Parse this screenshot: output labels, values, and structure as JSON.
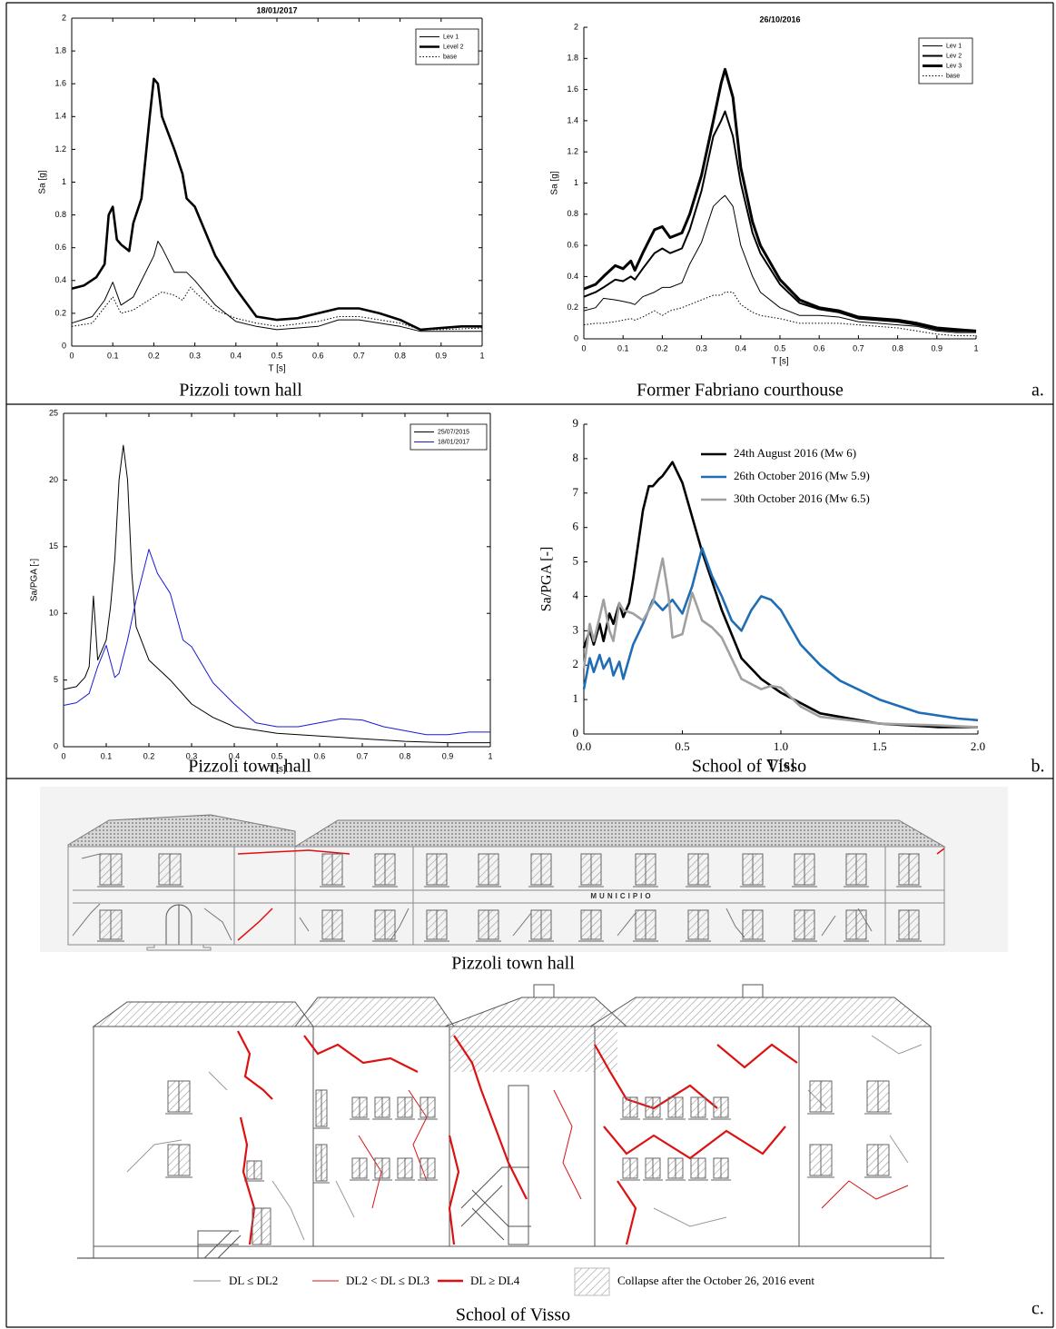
{
  "chart_data": [
    {
      "type": "line",
      "title": "18/01/2017",
      "x_label": "T [s]",
      "y_label": "Sa [g]",
      "xlim": [
        0,
        1
      ],
      "ylim": [
        0,
        2
      ],
      "xticks": [
        0,
        0.1,
        0.2,
        0.3,
        0.4,
        0.5,
        0.6,
        0.7,
        0.8,
        0.9,
        1
      ],
      "yticks": [
        0,
        0.2,
        0.4,
        0.6,
        0.8,
        1,
        1.2,
        1.4,
        1.6,
        1.8,
        2
      ],
      "box": true,
      "legend": "upper right",
      "legend_frame": true,
      "series": [
        {
          "name": "Lev 1",
          "color": "#000000",
          "width": 1,
          "dash": "none",
          "x": [
            0,
            0.05,
            0.08,
            0.1,
            0.12,
            0.15,
            0.2,
            0.21,
            0.22,
            0.25,
            0.28,
            0.3,
            0.35,
            0.4,
            0.45,
            0.5,
            0.6,
            0.65,
            0.7,
            0.8,
            0.85,
            0.9,
            1.0
          ],
          "values": [
            0.14,
            0.18,
            0.28,
            0.39,
            0.25,
            0.3,
            0.55,
            0.64,
            0.6,
            0.45,
            0.45,
            0.4,
            0.25,
            0.15,
            0.12,
            0.1,
            0.12,
            0.16,
            0.16,
            0.12,
            0.09,
            0.09,
            0.09
          ]
        },
        {
          "name": "Level 2",
          "color": "#000000",
          "width": 2.6,
          "dash": "none",
          "x": [
            0,
            0.03,
            0.06,
            0.08,
            0.09,
            0.1,
            0.11,
            0.12,
            0.14,
            0.15,
            0.17,
            0.19,
            0.2,
            0.21,
            0.22,
            0.25,
            0.27,
            0.28,
            0.3,
            0.35,
            0.4,
            0.45,
            0.5,
            0.55,
            0.6,
            0.65,
            0.7,
            0.75,
            0.8,
            0.85,
            0.9,
            0.95,
            1.0
          ],
          "values": [
            0.35,
            0.37,
            0.42,
            0.5,
            0.8,
            0.85,
            0.65,
            0.62,
            0.58,
            0.75,
            0.9,
            1.4,
            1.63,
            1.6,
            1.4,
            1.2,
            1.05,
            0.9,
            0.85,
            0.55,
            0.35,
            0.18,
            0.16,
            0.17,
            0.2,
            0.23,
            0.23,
            0.2,
            0.16,
            0.1,
            0.11,
            0.12,
            0.12
          ]
        },
        {
          "name": "base",
          "color": "#000000",
          "width": 1,
          "dash": "1.5 2",
          "x": [
            0,
            0.05,
            0.1,
            0.12,
            0.15,
            0.2,
            0.22,
            0.25,
            0.27,
            0.29,
            0.3,
            0.35,
            0.4,
            0.45,
            0.5,
            0.6,
            0.65,
            0.7,
            0.8,
            0.85,
            0.9,
            1.0
          ],
          "values": [
            0.12,
            0.14,
            0.3,
            0.2,
            0.22,
            0.3,
            0.33,
            0.31,
            0.28,
            0.36,
            0.33,
            0.22,
            0.17,
            0.14,
            0.12,
            0.15,
            0.18,
            0.18,
            0.14,
            0.1,
            0.1,
            0.11
          ]
        }
      ]
    },
    {
      "type": "line",
      "title": "26/10/2016",
      "x_label": "T [s]",
      "y_label": "Sa [g]",
      "xlim": [
        0,
        1
      ],
      "ylim": [
        0,
        2
      ],
      "xticks": [
        0,
        0.1,
        0.2,
        0.3,
        0.4,
        0.5,
        0.6,
        0.7,
        0.8,
        0.9,
        1
      ],
      "yticks": [
        0,
        0.2,
        0.4,
        0.6,
        0.8,
        1,
        1.2,
        1.4,
        1.6,
        1.8,
        2
      ],
      "box": false,
      "legend": "upper right",
      "legend_frame": true,
      "series": [
        {
          "name": "Lev 1",
          "color": "#000000",
          "width": 1,
          "dash": "none",
          "x": [
            0,
            0.03,
            0.05,
            0.08,
            0.1,
            0.12,
            0.13,
            0.15,
            0.18,
            0.2,
            0.22,
            0.25,
            0.27,
            0.3,
            0.33,
            0.35,
            0.36,
            0.38,
            0.4,
            0.43,
            0.45,
            0.5,
            0.55,
            0.6,
            0.65,
            0.7,
            0.75,
            0.8,
            0.85,
            0.9,
            0.95,
            1.0
          ],
          "values": [
            0.18,
            0.2,
            0.26,
            0.25,
            0.24,
            0.23,
            0.22,
            0.27,
            0.3,
            0.33,
            0.33,
            0.36,
            0.48,
            0.62,
            0.85,
            0.9,
            0.92,
            0.85,
            0.6,
            0.4,
            0.3,
            0.2,
            0.15,
            0.15,
            0.14,
            0.11,
            0.1,
            0.09,
            0.08,
            0.05,
            0.04,
            0.04
          ]
        },
        {
          "name": "Lev 2",
          "color": "#000000",
          "width": 2,
          "dash": "none",
          "x": [
            0,
            0.03,
            0.05,
            0.08,
            0.1,
            0.12,
            0.13,
            0.15,
            0.18,
            0.2,
            0.22,
            0.25,
            0.27,
            0.3,
            0.33,
            0.35,
            0.36,
            0.38,
            0.4,
            0.43,
            0.45,
            0.5,
            0.55,
            0.6,
            0.65,
            0.7,
            0.75,
            0.8,
            0.85,
            0.9,
            0.95,
            1.0
          ],
          "values": [
            0.27,
            0.3,
            0.33,
            0.38,
            0.37,
            0.4,
            0.38,
            0.45,
            0.55,
            0.58,
            0.55,
            0.58,
            0.7,
            0.95,
            1.3,
            1.4,
            1.46,
            1.3,
            1.0,
            0.68,
            0.55,
            0.35,
            0.23,
            0.19,
            0.17,
            0.13,
            0.12,
            0.11,
            0.09,
            0.06,
            0.05,
            0.05
          ]
        },
        {
          "name": "Lev 3",
          "color": "#000000",
          "width": 3,
          "dash": "none",
          "x": [
            0,
            0.03,
            0.05,
            0.08,
            0.1,
            0.12,
            0.13,
            0.15,
            0.18,
            0.2,
            0.22,
            0.25,
            0.27,
            0.3,
            0.33,
            0.35,
            0.36,
            0.38,
            0.4,
            0.43,
            0.45,
            0.5,
            0.55,
            0.6,
            0.65,
            0.7,
            0.75,
            0.8,
            0.85,
            0.9,
            0.95,
            1.0
          ],
          "values": [
            0.32,
            0.35,
            0.4,
            0.47,
            0.45,
            0.5,
            0.44,
            0.55,
            0.7,
            0.72,
            0.65,
            0.68,
            0.8,
            1.05,
            1.4,
            1.64,
            1.73,
            1.55,
            1.1,
            0.75,
            0.6,
            0.38,
            0.25,
            0.2,
            0.18,
            0.14,
            0.13,
            0.12,
            0.1,
            0.07,
            0.06,
            0.05
          ]
        },
        {
          "name": "base",
          "color": "#000000",
          "width": 1,
          "dash": "1.5 2",
          "x": [
            0,
            0.03,
            0.05,
            0.08,
            0.1,
            0.12,
            0.13,
            0.15,
            0.18,
            0.2,
            0.22,
            0.25,
            0.27,
            0.3,
            0.33,
            0.35,
            0.36,
            0.38,
            0.4,
            0.43,
            0.45,
            0.5,
            0.55,
            0.6,
            0.65,
            0.7,
            0.75,
            0.8,
            0.85,
            0.9,
            0.95,
            1.0
          ],
          "values": [
            0.09,
            0.1,
            0.1,
            0.11,
            0.12,
            0.13,
            0.12,
            0.14,
            0.18,
            0.15,
            0.18,
            0.2,
            0.22,
            0.25,
            0.28,
            0.28,
            0.3,
            0.3,
            0.22,
            0.17,
            0.15,
            0.13,
            0.1,
            0.1,
            0.1,
            0.09,
            0.08,
            0.07,
            0.05,
            0.03,
            0.02,
            0.02
          ]
        }
      ]
    },
    {
      "type": "line",
      "x_label": "T [s]",
      "y_label": "Sa/PGA [-]",
      "xlim": [
        0,
        1
      ],
      "ylim": [
        0,
        25
      ],
      "xticks": [
        0,
        0.1,
        0.2,
        0.3,
        0.4,
        0.5,
        0.6,
        0.7,
        0.8,
        0.9,
        1
      ],
      "yticks": [
        0,
        5,
        10,
        15,
        20,
        25
      ],
      "box": true,
      "legend": "upper right",
      "legend_frame": true,
      "series": [
        {
          "name": "25/07/2015",
          "color": "#000000",
          "width": 1,
          "dash": "none",
          "x": [
            0,
            0.03,
            0.05,
            0.06,
            0.07,
            0.08,
            0.1,
            0.11,
            0.12,
            0.13,
            0.14,
            0.15,
            0.16,
            0.17,
            0.2,
            0.25,
            0.3,
            0.35,
            0.4,
            0.5,
            0.6,
            0.7,
            0.8,
            0.9,
            1.0
          ],
          "values": [
            4.3,
            4.5,
            5.2,
            6,
            11.3,
            6.5,
            8,
            10.5,
            14,
            20,
            22.6,
            20,
            13,
            9,
            6.5,
            5,
            3.2,
            2.2,
            1.5,
            1.0,
            0.8,
            0.6,
            0.4,
            0.3,
            0.3
          ]
        },
        {
          "name": "18/01/2017",
          "color": "#1a1ad6",
          "width": 1,
          "dash": "none",
          "x": [
            0,
            0.03,
            0.06,
            0.08,
            0.1,
            0.12,
            0.13,
            0.15,
            0.17,
            0.2,
            0.22,
            0.25,
            0.28,
            0.3,
            0.35,
            0.4,
            0.45,
            0.5,
            0.55,
            0.6,
            0.65,
            0.7,
            0.75,
            0.8,
            0.85,
            0.9,
            0.95,
            1.0
          ],
          "values": [
            3.1,
            3.3,
            4,
            6,
            7.6,
            5.2,
            5.5,
            8,
            11,
            14.8,
            13,
            11.5,
            8,
            7.5,
            4.8,
            3.2,
            1.8,
            1.5,
            1.5,
            1.8,
            2.1,
            2.0,
            1.5,
            1.2,
            0.9,
            0.9,
            1.1,
            1.1
          ]
        }
      ]
    },
    {
      "type": "line",
      "x_label": "T [s]",
      "y_label": "Sa/PGA [-]",
      "xlim": [
        0,
        2
      ],
      "ylim": [
        0,
        9
      ],
      "xticks": [
        {
          "value": 0,
          "label": "0.0"
        },
        0.5,
        {
          "value": 1,
          "label": "1.0"
        },
        1.5,
        {
          "value": 2,
          "label": "2.0"
        }
      ],
      "yticks": [
        0,
        1,
        2,
        3,
        4,
        5,
        6,
        7,
        8,
        9
      ],
      "box": false,
      "legend": "upper right",
      "legend_frame": false,
      "series": [
        {
          "name": "24th August 2016 (Mw 6)",
          "color": "#000000",
          "width": 2.6,
          "dash": "none",
          "x": [
            0,
            0.03,
            0.05,
            0.08,
            0.1,
            0.13,
            0.15,
            0.18,
            0.2,
            0.23,
            0.25,
            0.3,
            0.33,
            0.35,
            0.38,
            0.4,
            0.45,
            0.5,
            0.6,
            0.7,
            0.8,
            0.9,
            1.0,
            1.2,
            1.5,
            1.8,
            2.0
          ],
          "values": [
            2.5,
            3,
            2.6,
            3.2,
            2.7,
            3.5,
            3.2,
            3.8,
            3.4,
            3.8,
            4.5,
            6.5,
            7.2,
            7.2,
            7.4,
            7.5,
            7.9,
            7.3,
            5.3,
            3.6,
            2.2,
            1.6,
            1.2,
            0.6,
            0.3,
            0.2,
            0.2
          ]
        },
        {
          "name": "26th October 2016 (Mw 5.9)",
          "color": "#1f6db5",
          "width": 2.6,
          "dash": "none",
          "x": [
            0,
            0.03,
            0.05,
            0.08,
            0.1,
            0.13,
            0.15,
            0.18,
            0.2,
            0.25,
            0.3,
            0.35,
            0.4,
            0.45,
            0.5,
            0.55,
            0.6,
            0.65,
            0.7,
            0.75,
            0.8,
            0.85,
            0.9,
            0.95,
            1.0,
            1.1,
            1.2,
            1.3,
            1.5,
            1.7,
            1.9,
            2.0
          ],
          "values": [
            1.3,
            2.2,
            1.8,
            2.3,
            1.9,
            2.2,
            1.7,
            2.1,
            1.6,
            2.6,
            3.2,
            3.9,
            3.6,
            3.9,
            3.5,
            4.3,
            5.4,
            4.6,
            4.0,
            3.3,
            3.0,
            3.6,
            4.0,
            3.9,
            3.6,
            2.6,
            2.0,
            1.55,
            1.0,
            0.62,
            0.45,
            0.4
          ]
        },
        {
          "name": "30th October 2016 (Mw 6.5)",
          "color": "#a0a0a0",
          "width": 2.6,
          "dash": "none",
          "x": [
            0,
            0.03,
            0.05,
            0.08,
            0.1,
            0.13,
            0.15,
            0.18,
            0.2,
            0.25,
            0.3,
            0.35,
            0.4,
            0.43,
            0.45,
            0.5,
            0.55,
            0.6,
            0.65,
            0.7,
            0.8,
            0.9,
            0.95,
            1.0,
            1.1,
            1.2,
            1.5,
            1.8,
            2.0
          ],
          "values": [
            1.9,
            3.2,
            2.7,
            3.4,
            3.9,
            3.0,
            2.7,
            3.8,
            3.6,
            3.5,
            3.3,
            3.8,
            5.1,
            4.0,
            2.8,
            2.9,
            4.1,
            3.3,
            3.1,
            2.8,
            1.6,
            1.3,
            1.4,
            1.35,
            0.8,
            0.5,
            0.3,
            0.25,
            0.2
          ]
        }
      ]
    }
  ],
  "panels": [
    {
      "label": "a.",
      "captions": [
        "Pizzoli town hall",
        "Former Fabriano courthouse"
      ]
    },
    {
      "label": "b.",
      "captions": [
        "Pizzoli town hall",
        "School of Visso"
      ]
    },
    {
      "label": "c.",
      "drawings": [
        {
          "caption": "Pizzoli town hall",
          "sign": "MUNICIPIO"
        },
        {
          "caption": "School of Visso",
          "legend": [
            "DL ≤ DL2",
            "DL2 < DL ≤ DL3",
            "DL ≥ DL4",
            "Collapse after the October 26, 2016 event"
          ]
        }
      ]
    }
  ]
}
